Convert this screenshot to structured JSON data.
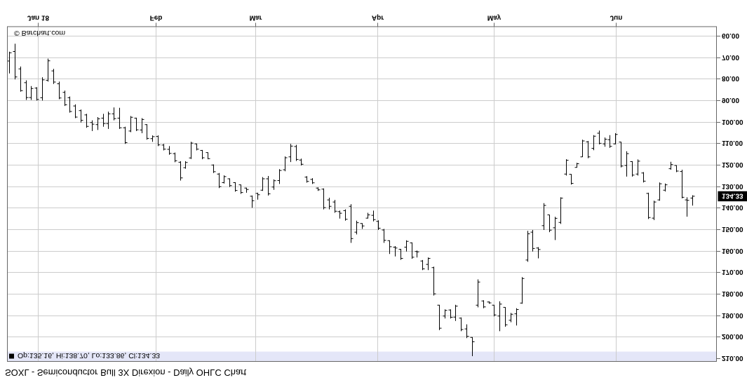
{
  "title": "SOXL - Semiconductor Bull 3X Direxion - Daily OHLC Chart",
  "watermark": "© Barchart.com",
  "quote_line": {
    "marker": "■",
    "text": "Op:135.16, Hi:138.70, Lo:133.86, Cl:134.33"
  },
  "orientation_note": "entire chart rendered vertically mirrored (upside-down text, price axis 60 at top)",
  "colors": {
    "background": "#ffffff",
    "bar": "#000000",
    "grid": "#cccccc",
    "border": "#666666",
    "tick": "#666666",
    "band_bg": "#e4e6f8",
    "text": "#000000",
    "highlight_bg": "#000000",
    "highlight_fg": "#ffffff"
  },
  "y_axis": {
    "labels": [
      "60.00",
      "70.00",
      "80.00",
      "90.00",
      "100.00",
      "110.00",
      "120.00",
      "130.00",
      "140.00",
      "150.00",
      "160.00",
      "170.00",
      "180.00",
      "190.00",
      "200.00",
      "210.00"
    ],
    "highlight": {
      "label": "134.33",
      "value": 134.33
    }
  },
  "x_axis": {
    "months": [
      {
        "label": "Jan 18",
        "bar_index": 5.2
      },
      {
        "label": "Feb",
        "bar_index": 26.6
      },
      {
        "label": "Mar",
        "bar_index": 44.7
      },
      {
        "label": "Apr",
        "bar_index": 66.8
      },
      {
        "label": "May",
        "bar_index": 87.9
      },
      {
        "label": "Jun",
        "bar_index": 110.1
      }
    ]
  },
  "chart_data": {
    "type": "bar",
    "subtype": "ohlc-daily",
    "symbol": "SOXL",
    "title": "SOXL - Semiconductor Bull 3X Direxion - Daily OHLC Chart",
    "ylim": [
      55,
      211.5
    ],
    "y_tick_step": 10,
    "last_quote": {
      "open": 135.16,
      "high": 138.7,
      "low": 133.86,
      "close": 134.33
    },
    "bars_ohlc": [
      [
        71.4,
        77.2,
        67.1,
        67.6
      ],
      [
        67.0,
        80.0,
        63.4,
        78.8
      ],
      [
        75.1,
        85.7,
        74.0,
        85.2
      ],
      [
        81.5,
        89.5,
        80.4,
        88.4
      ],
      [
        88.4,
        89.5,
        83.1,
        84.2
      ],
      [
        84.0,
        89.8,
        83.6,
        89.3
      ],
      [
        88.5,
        89.8,
        79.0,
        80.2
      ],
      [
        80.4,
        81.0,
        70.3,
        71.3
      ],
      [
        76.0,
        82.1,
        75.1,
        81.2
      ],
      [
        82.0,
        89.2,
        81.0,
        88.6
      ],
      [
        86.0,
        92.3,
        85.2,
        91.8
      ],
      [
        88.5,
        95.4,
        87.9,
        94.9
      ],
      [
        92.3,
        98.0,
        91.6,
        97.5
      ],
      [
        94.5,
        100.0,
        94.0,
        99.0
      ],
      [
        96.5,
        102.5,
        96.0,
        101.8
      ],
      [
        100.0,
        104.0,
        99.0,
        100.8
      ],
      [
        101.0,
        103.5,
        97.5,
        98.3
      ],
      [
        98.0,
        102.0,
        96.0,
        100.5
      ],
      [
        100.5,
        103.0,
        95.0,
        96.0
      ],
      [
        96.0,
        99.0,
        93.0,
        98.2
      ],
      [
        98.0,
        103.0,
        93.2,
        102.5
      ],
      [
        102.5,
        110.0,
        102.0,
        109.4
      ],
      [
        104.0,
        104.5,
        97.0,
        97.6
      ],
      [
        98.0,
        104.0,
        97.8,
        103.4
      ],
      [
        103.5,
        105.0,
        98.0,
        98.6
      ],
      [
        101.0,
        108.0,
        100.8,
        107.4
      ],
      [
        107.5,
        109.0,
        106.0,
        106.6
      ],
      [
        106.5,
        111.0,
        106.0,
        110.4
      ],
      [
        110.5,
        113.0,
        110.0,
        112.4
      ],
      [
        112.5,
        115.0,
        111.0,
        114.4
      ],
      [
        114.5,
        118.5,
        114.0,
        117.8
      ],
      [
        118.5,
        127.0,
        118.0,
        125.8
      ],
      [
        121.0,
        121.5,
        118.0,
        118.6
      ],
      [
        116.5,
        117.0,
        109.0,
        109.6
      ],
      [
        110.0,
        113.0,
        109.8,
        112.4
      ],
      [
        113.0,
        117.1,
        112.8,
        116.4
      ],
      [
        114.0,
        117.1,
        113.9,
        116.8
      ],
      [
        119.8,
        123.5,
        119.5,
        122.9
      ],
      [
        124.0,
        130.5,
        123.5,
        129.8
      ],
      [
        128.0,
        128.4,
        124.6,
        125.2
      ],
      [
        126.2,
        130.0,
        126.0,
        129.4
      ],
      [
        128.0,
        132.2,
        127.8,
        131.6
      ],
      [
        129.0,
        133.2,
        128.9,
        132.6
      ],
      [
        130.5,
        132.7,
        130.3,
        131.2
      ],
      [
        134.3,
        139.7,
        134.0,
        136.4
      ],
      [
        133.0,
        135.9,
        132.7,
        133.6
      ],
      [
        131.5,
        131.8,
        125.4,
        126.2
      ],
      [
        126.2,
        134.0,
        124.9,
        133.2
      ],
      [
        130.0,
        131.3,
        126.5,
        127.1
      ],
      [
        127.0,
        128.6,
        121.7,
        122.3
      ],
      [
        122.0,
        122.7,
        115.8,
        116.4
      ],
      [
        116.0,
        118.4,
        110.0,
        111.0
      ],
      [
        111.2,
        117.9,
        110.4,
        117.2
      ],
      [
        117.5,
        120.0,
        116.8,
        119.4
      ],
      [
        125.4,
        128.0,
        125.0,
        127.4
      ],
      [
        126.5,
        128.6,
        125.9,
        128.1
      ],
      [
        130.5,
        131.8,
        130.2,
        131.3
      ],
      [
        131.0,
        140.4,
        130.7,
        139.6
      ],
      [
        136.0,
        140.4,
        135.0,
        139.0
      ],
      [
        137.0,
        142.0,
        136.0,
        141.3
      ],
      [
        141.5,
        144.7,
        141.0,
        142.2
      ],
      [
        141.0,
        145.7,
        140.4,
        145.0
      ],
      [
        139.0,
        156.0,
        138.0,
        154.0
      ],
      [
        151.0,
        152.1,
        145.7,
        146.6
      ],
      [
        147.0,
        149.5,
        146.8,
        148.1
      ],
      [
        144.5,
        144.7,
        142.0,
        143.0
      ],
      [
        143.2,
        146.0,
        141.0,
        145.2
      ],
      [
        146.0,
        150.0,
        145.5,
        149.2
      ],
      [
        150.0,
        156.0,
        149.5,
        154.8
      ],
      [
        155.0,
        161.2,
        154.8,
        157.8
      ],
      [
        158.0,
        162.3,
        157.5,
        158.4
      ],
      [
        159.0,
        163.9,
        158.8,
        163.2
      ],
      [
        158.0,
        160.0,
        154.8,
        155.3
      ],
      [
        156.0,
        163.4,
        155.8,
        162.7
      ],
      [
        160.0,
        162.8,
        159.6,
        160.2
      ],
      [
        164.4,
        168.7,
        164.0,
        168.1
      ],
      [
        166.0,
        168.7,
        162.8,
        163.2
      ],
      [
        167.5,
        180.5,
        167.1,
        179.7
      ],
      [
        185.0,
        196.6,
        184.8,
        195.7
      ],
      [
        190.0,
        191.2,
        186.9,
        187.4
      ],
      [
        187.2,
        191.2,
        186.9,
        190.6
      ],
      [
        190.5,
        192.3,
        184.8,
        185.4
      ],
      [
        191.0,
        197.1,
        190.7,
        196.3
      ],
      [
        196.0,
        200.3,
        193.9,
        199.5
      ],
      [
        200.0,
        208.7,
        199.8,
        202.0
      ],
      [
        185.0,
        186.0,
        173.0,
        174.2
      ],
      [
        183.0,
        186.4,
        182.7,
        185.8
      ],
      [
        183.5,
        184.3,
        183.2,
        183.9
      ],
      [
        185.0,
        190.2,
        184.8,
        189.5
      ],
      [
        190.0,
        197.1,
        183.2,
        184.5
      ],
      [
        186.0,
        195.0,
        185.9,
        194.1
      ],
      [
        192.0,
        192.9,
        188.6,
        189.2
      ],
      [
        189.0,
        194.4,
        186.4,
        187.0
      ],
      [
        184.0,
        184.3,
        171.9,
        172.6
      ],
      [
        164.0,
        164.8,
        150.4,
        151.8
      ],
      [
        151.0,
        160.0,
        150.0,
        158.6
      ],
      [
        158.4,
        163.2,
        158.0,
        159.1
      ],
      [
        148.0,
        150.0,
        137.5,
        138.6
      ],
      [
        143.0,
        151.0,
        142.9,
        150.1
      ],
      [
        149.0,
        154.7,
        143.9,
        144.6
      ],
      [
        146.5,
        147.2,
        134.8,
        135.2
      ],
      [
        124.0,
        124.7,
        117.1,
        117.6
      ],
      [
        124.1,
        128.9,
        124.0,
        128.3
      ],
      [
        120.9,
        121.0,
        118.8,
        119.2
      ],
      [
        116.0,
        116.1,
        108.0,
        108.6
      ],
      [
        109.0,
        116.6,
        108.6,
        116.0
      ],
      [
        112.0,
        112.9,
        105.9,
        106.4
      ],
      [
        105.0,
        110.2,
        103.8,
        109.7
      ],
      [
        110.0,
        111.3,
        107.0,
        107.8
      ],
      [
        108.0,
        111.8,
        105.9,
        111.1
      ],
      [
        110.0,
        110.2,
        105.0,
        105.6
      ],
      [
        109.1,
        120.9,
        109.0,
        120.3
      ],
      [
        120.0,
        125.2,
        113.4,
        114.5
      ],
      [
        118.2,
        125.2,
        118.0,
        124.5
      ],
      [
        124.0,
        124.7,
        117.2,
        118.0
      ],
      [
        123.5,
        127.9,
        123.1,
        127.3
      ],
      [
        133.0,
        144.9,
        132.7,
        144.2
      ],
      [
        144.5,
        145.4,
        136.4,
        137.0
      ],
      [
        136.0,
        136.4,
        127.9,
        128.5
      ],
      [
        131.5,
        132.1,
        128.4,
        129.0
      ],
      [
        121.5,
        122.0,
        118.3,
        119.6
      ],
      [
        120.0,
        123.1,
        119.9,
        122.6
      ],
      [
        122.8,
        135.3,
        122.0,
        134.8
      ],
      [
        136.0,
        143.8,
        134.8,
        136.2
      ],
      [
        135.16,
        138.7,
        133.86,
        134.33
      ]
    ]
  }
}
